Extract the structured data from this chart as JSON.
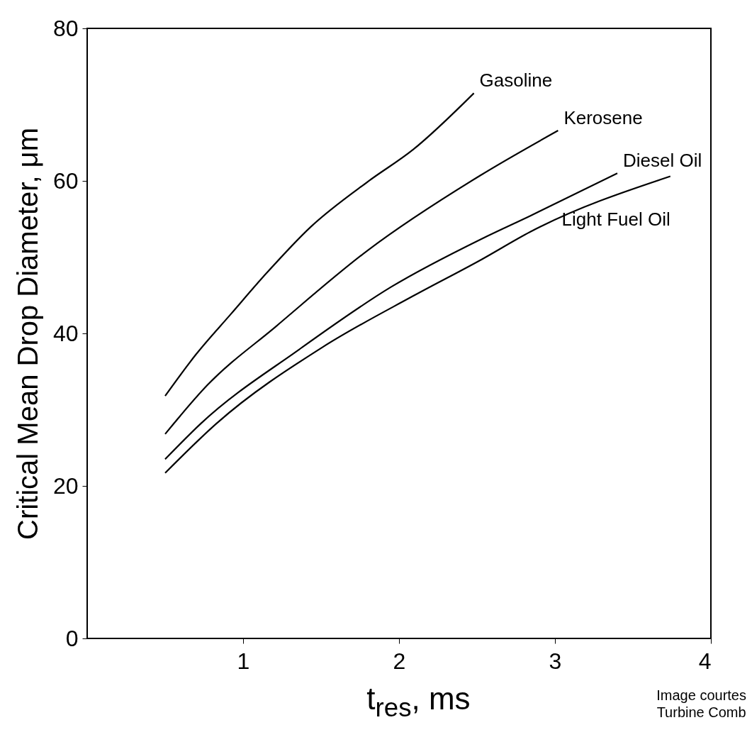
{
  "chart_data": {
    "type": "line",
    "xlabel": "t$_{res}$, ms",
    "ylabel": "Critical Mean Drop Diameter, μm",
    "xlim": [
      0,
      4
    ],
    "xticks": [
      1,
      2,
      3,
      4
    ],
    "ylim": [
      0,
      80
    ],
    "yticks": [
      0,
      20,
      40,
      60,
      80
    ],
    "grid": false,
    "legend": false,
    "marker": "none",
    "line_style": "solid",
    "annotations": [
      "Image courtes",
      "Turbine Comb"
    ],
    "series": [
      {
        "name": "Gasoline",
        "color": "#000000",
        "x": [
          0.5,
          0.7,
          0.92,
          1.15,
          1.43,
          1.8,
          2.09,
          2.48
        ],
        "values": [
          31.8,
          37.3,
          42.5,
          47.9,
          53.9,
          59.9,
          64.1,
          71.5
        ]
      },
      {
        "name": "Kerosene",
        "color": "#000000",
        "x": [
          0.5,
          0.77,
          1.21,
          1.8,
          2.52,
          3.02
        ],
        "values": [
          26.8,
          33.2,
          40.9,
          50.9,
          60.7,
          66.6
        ]
      },
      {
        "name": "Diesel Oil",
        "color": "#000000",
        "x": [
          0.5,
          0.73,
          1.36,
          1.95,
          2.53,
          2.84,
          3.4
        ],
        "values": [
          23.5,
          28.2,
          37.9,
          46.1,
          52.4,
          55.4,
          61.0
        ]
      },
      {
        "name": "Light Fuel Oil",
        "color": "#000000",
        "x": [
          0.5,
          0.83,
          1.51,
          2.09,
          2.53,
          2.84,
          3.74
        ],
        "values": [
          21.7,
          28.2,
          38.2,
          44.9,
          49.7,
          53.3,
          60.6
        ]
      }
    ]
  }
}
